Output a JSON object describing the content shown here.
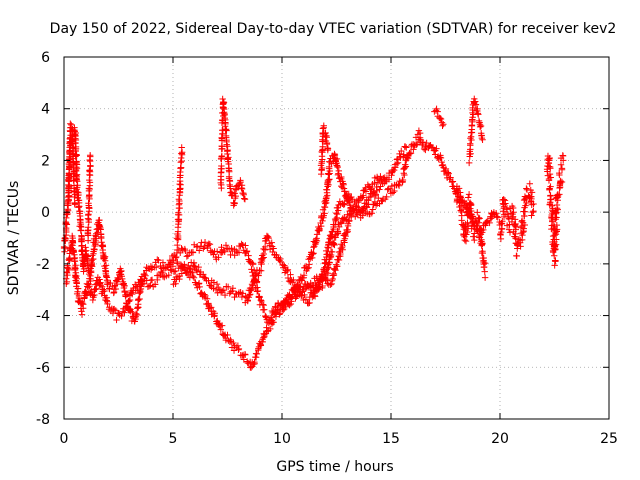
{
  "chart_data": {
    "type": "scatter",
    "title": "Day 150 of 2022, Sidereal Day-to-day VTEC variation (SDTVAR) for receiver kev2",
    "xlabel": "GPS time / hours",
    "ylabel": "SDTVAR / TECUs",
    "xlim": [
      0,
      25
    ],
    "ylim": [
      -8,
      6
    ],
    "xticks": [
      0,
      5,
      10,
      15,
      20,
      25
    ],
    "yticks": [
      -8,
      -6,
      -4,
      -2,
      0,
      2,
      4,
      6
    ],
    "grid": true,
    "marker": "+",
    "series": [
      {
        "name": "SDTVAR",
        "color": "#ff0000",
        "trace_tracks": [
          [
            [
              0.0,
              -1.5
            ],
            [
              0.2,
              0.5
            ],
            [
              0.3,
              2.8
            ],
            [
              0.5,
              3.2
            ],
            [
              0.6,
              1.0
            ],
            [
              0.75,
              -0.5
            ],
            [
              0.9,
              -2.2
            ],
            [
              1.0,
              -1.5
            ],
            [
              1.2,
              -2.5
            ],
            [
              1.4,
              -1.2
            ],
            [
              1.6,
              -0.3
            ],
            [
              1.8,
              -1.5
            ],
            [
              2.0,
              -2.8
            ],
            [
              2.3,
              -3.0
            ],
            [
              2.6,
              -2.2
            ],
            [
              2.9,
              -3.5
            ],
            [
              3.2,
              -4.2
            ],
            [
              3.4,
              -3.6
            ],
            [
              3.6,
              -2.5
            ],
            [
              3.9,
              -2.2
            ],
            [
              4.3,
              -2.0
            ],
            [
              4.7,
              -2.2
            ],
            [
              5.2,
              -1.5
            ],
            [
              5.6,
              -1.6
            ],
            [
              6.0,
              -1.4
            ],
            [
              6.5,
              -1.2
            ],
            [
              7.0,
              -1.7
            ],
            [
              7.4,
              -1.4
            ],
            [
              7.8,
              -1.6
            ],
            [
              8.2,
              -1.3
            ],
            [
              8.6,
              -2.0
            ],
            [
              9.0,
              -3.5
            ],
            [
              9.4,
              -4.2
            ],
            [
              9.8,
              -3.6
            ],
            [
              10.3,
              -3.3
            ],
            [
              10.8,
              -2.9
            ],
            [
              11.3,
              -2.8
            ],
            [
              11.8,
              -2.5
            ],
            [
              12.3,
              -2.7
            ],
            [
              12.8,
              -1.2
            ],
            [
              13.2,
              0.0
            ],
            [
              13.6,
              0.5
            ],
            [
              14.0,
              1.0
            ],
            [
              14.5,
              1.3
            ],
            [
              15.0,
              1.4
            ],
            [
              15.3,
              2.0
            ],
            [
              15.7,
              2.5
            ]
          ],
          [
            [
              0.1,
              -2.6
            ],
            [
              0.4,
              -1.0
            ],
            [
              0.6,
              -3.0
            ],
            [
              0.8,
              -3.8
            ],
            [
              1.1,
              -2.8
            ],
            [
              1.3,
              -3.3
            ],
            [
              1.6,
              -2.6
            ],
            [
              2.0,
              -3.6
            ],
            [
              2.4,
              -4.0
            ],
            [
              2.8,
              -3.8
            ],
            [
              3.2,
              -3.0
            ],
            [
              3.6,
              -2.6
            ],
            [
              4.0,
              -2.8
            ],
            [
              4.5,
              -2.4
            ],
            [
              5.0,
              -2.2
            ],
            [
              5.4,
              -2.0
            ],
            [
              5.8,
              -2.4
            ],
            [
              6.2,
              -2.9
            ],
            [
              6.6,
              -3.6
            ],
            [
              7.0,
              -4.2
            ],
            [
              7.4,
              -4.8
            ],
            [
              7.8,
              -5.2
            ],
            [
              8.2,
              -5.5
            ],
            [
              8.6,
              -5.9
            ],
            [
              8.9,
              -5.4
            ],
            [
              9.2,
              -4.7
            ],
            [
              9.6,
              -4.2
            ],
            [
              10.0,
              -3.6
            ],
            [
              10.4,
              -3.4
            ],
            [
              10.8,
              -3.0
            ],
            [
              11.2,
              -2.9
            ],
            [
              11.5,
              -3.2
            ],
            [
              11.9,
              -2.3
            ],
            [
              12.2,
              -1.0
            ],
            [
              12.6,
              0.2
            ],
            [
              13.0,
              0.6
            ],
            [
              13.5,
              0.2
            ],
            [
              14.0,
              0.0
            ],
            [
              14.5,
              0.5
            ],
            [
              15.0,
              0.8
            ],
            [
              15.4,
              1.2
            ]
          ],
          [
            [
              5.0,
              -2.7
            ],
            [
              5.4,
              -2.3
            ],
            [
              5.9,
              -2.0
            ],
            [
              6.3,
              -2.4
            ],
            [
              6.8,
              -2.8
            ],
            [
              7.2,
              -3.1
            ],
            [
              7.6,
              -3.0
            ],
            [
              8.0,
              -3.2
            ],
            [
              8.4,
              -3.4
            ],
            [
              8.7,
              -2.7
            ],
            [
              9.0,
              -2.2
            ],
            [
              9.3,
              -1.0
            ],
            [
              9.6,
              -1.5
            ],
            [
              10.0,
              -2.0
            ],
            [
              10.4,
              -2.6
            ],
            [
              10.8,
              -3.1
            ],
            [
              11.2,
              -3.4
            ],
            [
              11.6,
              -3.0
            ],
            [
              12.0,
              -2.6
            ],
            [
              12.3,
              -1.4
            ],
            [
              12.6,
              -0.6
            ],
            [
              13.0,
              -0.1
            ]
          ],
          [
            [
              10.0,
              -3.8
            ],
            [
              10.3,
              -3.3
            ],
            [
              10.6,
              -3.0
            ],
            [
              10.9,
              -2.6
            ],
            [
              11.2,
              -2.0
            ],
            [
              11.6,
              -1.0
            ],
            [
              12.0,
              0.3
            ],
            [
              12.2,
              1.8
            ],
            [
              12.4,
              2.3
            ],
            [
              12.6,
              1.5
            ],
            [
              12.9,
              0.8
            ],
            [
              13.2,
              0.0
            ],
            [
              13.6,
              -0.2
            ],
            [
              14.0,
              0.5
            ],
            [
              14.4,
              1.0
            ],
            [
              14.8,
              1.2
            ]
          ],
          [
            [
              15.5,
              1.2
            ],
            [
              15.8,
              2.2
            ],
            [
              16.1,
              2.6
            ],
            [
              16.3,
              3.0
            ],
            [
              16.5,
              2.5
            ],
            [
              16.8,
              2.7
            ],
            [
              17.1,
              2.3
            ],
            [
              17.3,
              2.0
            ],
            [
              17.5,
              1.5
            ],
            [
              17.7,
              1.3
            ],
            [
              17.9,
              1.0
            ],
            [
              18.1,
              0.6
            ],
            [
              18.3,
              0.3
            ],
            [
              18.5,
              0.1
            ],
            [
              18.7,
              -0.3
            ],
            [
              18.9,
              -0.5
            ],
            [
              19.1,
              -0.8
            ],
            [
              19.3,
              -0.6
            ],
            [
              19.5,
              -0.3
            ],
            [
              19.7,
              0.0
            ],
            [
              19.9,
              -0.2
            ]
          ]
        ],
        "spike_tracks": [
          [
            [
              0.2,
              0.5
            ],
            [
              0.3,
              3.4
            ],
            [
              0.4,
              3.1
            ],
            [
              0.45,
              1.5
            ],
            [
              0.5,
              0.3
            ]
          ],
          [
            [
              1.1,
              -1.0
            ],
            [
              1.15,
              0.5
            ],
            [
              1.2,
              2.2
            ]
          ],
          [
            [
              5.2,
              -1.2
            ],
            [
              5.3,
              0.5
            ],
            [
              5.4,
              2.5
            ]
          ],
          [
            [
              7.2,
              1.0
            ],
            [
              7.3,
              4.4
            ],
            [
              7.45,
              3.0
            ],
            [
              7.6,
              1.0
            ],
            [
              7.8,
              0.3
            ],
            [
              7.9,
              1.0
            ],
            [
              8.1,
              1.2
            ],
            [
              8.3,
              0.5
            ]
          ],
          [
            [
              11.8,
              1.5
            ],
            [
              11.9,
              3.3
            ],
            [
              12.0,
              3.0
            ],
            [
              12.1,
              2.4
            ]
          ],
          [
            [
              17.0,
              4.0
            ],
            [
              17.2,
              3.7
            ],
            [
              17.4,
              3.4
            ]
          ],
          [
            [
              18.6,
              2.0
            ],
            [
              18.8,
              4.4
            ],
            [
              19.0,
              3.8
            ],
            [
              19.2,
              2.8
            ]
          ]
        ],
        "cluster_tracks": [
          [
            [
              18.0,
              1.0
            ],
            [
              18.2,
              0.2
            ],
            [
              18.4,
              -1.0
            ],
            [
              18.5,
              -0.2
            ],
            [
              18.6,
              0.5
            ],
            [
              18.8,
              -0.8
            ],
            [
              19.0,
              -0.3
            ],
            [
              19.2,
              -1.5
            ],
            [
              19.3,
              -2.3
            ]
          ],
          [
            [
              20.0,
              -1.0
            ],
            [
              20.2,
              0.3
            ],
            [
              20.4,
              -0.5
            ],
            [
              20.6,
              0.0
            ],
            [
              20.8,
              -1.5
            ],
            [
              21.0,
              -1.0
            ],
            [
              21.2,
              0.5
            ],
            [
              21.4,
              0.8
            ],
            [
              21.5,
              0.0
            ]
          ],
          [
            [
              22.2,
              2.2
            ],
            [
              22.3,
              0.8
            ],
            [
              22.4,
              -0.5
            ],
            [
              22.5,
              -1.8
            ],
            [
              22.6,
              0.3
            ],
            [
              22.8,
              1.5
            ],
            [
              22.9,
              2.0
            ]
          ]
        ]
      }
    ]
  }
}
